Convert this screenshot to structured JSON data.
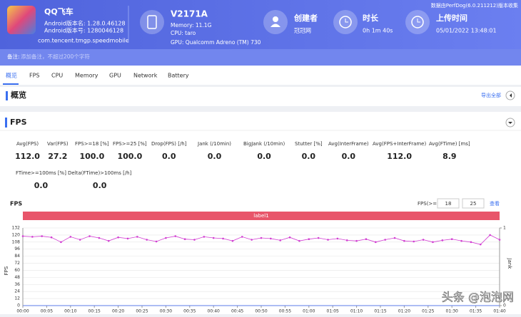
{
  "header": {
    "app": {
      "name": "QQ飞车",
      "version_name": "Android版本名: 1.28.0.46128",
      "version_code": "Android版本号: 1280046128",
      "package": "com.tencent.tmgp.speedmobile"
    },
    "device": {
      "model": "V2171A",
      "memory": "Memory: 11.1G",
      "cpu": "CPU: taro",
      "gpu": "GPU: Qualcomm Adreno (TM) 730"
    },
    "creator": {
      "title": "创建者",
      "value": "冠冠网"
    },
    "duration": {
      "title": "时长",
      "value": "0h 1m 40s"
    },
    "upload": {
      "title": "上传时间",
      "value": "05/01/2022 13:48:01"
    },
    "source": "数据由PerfDog(6.0.211212)版本收集"
  },
  "note": {
    "label": "备注:",
    "placeholder": "添加备注，不超过200个字符"
  },
  "tabs": [
    "概览",
    "FPS",
    "CPU",
    "Memory",
    "GPU",
    "Network",
    "Battery"
  ],
  "overview": {
    "title": "概览",
    "export": "导出全部"
  },
  "fps_section": {
    "title": "FPS",
    "metrics": [
      {
        "label": "Avg(FPS)",
        "value": "112.0"
      },
      {
        "label": "Var(FPS)",
        "value": "27.2"
      },
      {
        "label": "FPS>=18 [%]",
        "value": "100.0"
      },
      {
        "label": "FPS>=25 [%]",
        "value": "100.0"
      },
      {
        "label": "Drop(FPS) [/h]",
        "value": "0.0"
      },
      {
        "label": "Jank (/10min)",
        "value": "0.0"
      },
      {
        "label": "BigJank (/10min)",
        "value": "0.0"
      },
      {
        "label": "Stutter [%]",
        "value": "0.0"
      },
      {
        "label": "Avg(InterFrame)",
        "value": "0.0"
      },
      {
        "label": "Avg(FPS+InterFrame)",
        "value": "112.0"
      },
      {
        "label": "Avg(FTime) [ms]",
        "value": "8.9"
      },
      {
        "label": "FTime>=100ms [%]",
        "value": "0.0"
      },
      {
        "label": "Delta(FTime)>100ms [/h]",
        "value": "0.0"
      }
    ]
  },
  "chart_data": {
    "type": "line",
    "title": "FPS",
    "threshold_label": "FPS(>=)",
    "thresholds": [
      18,
      25
    ],
    "view": "查看",
    "label": "label1",
    "y_label": "FPS",
    "y2_label": "Jank",
    "color": "#d23fd2",
    "x": [
      0,
      2,
      4,
      6,
      8,
      10,
      12,
      14,
      16,
      18,
      20,
      22,
      24,
      26,
      28,
      30,
      32,
      34,
      36,
      38,
      40,
      42,
      44,
      46,
      48,
      50,
      52,
      54,
      56,
      58,
      60,
      62,
      64,
      66,
      68,
      70,
      72,
      74,
      76,
      78,
      80,
      82,
      84,
      86,
      88,
      90,
      92,
      94,
      96,
      98,
      100
    ],
    "values": [
      118,
      117,
      118,
      116,
      108,
      117,
      112,
      118,
      115,
      110,
      116,
      114,
      117,
      112,
      109,
      115,
      118,
      113,
      112,
      117,
      115,
      114,
      110,
      117,
      112,
      115,
      114,
      111,
      116,
      110,
      113,
      115,
      112,
      114,
      111,
      110,
      113,
      108,
      112,
      115,
      110,
      109,
      112,
      108,
      111,
      113,
      110,
      108,
      104,
      120,
      112
    ],
    "xlim": [
      0,
      100
    ],
    "ylim": [
      0,
      132
    ],
    "yticks": [
      0,
      12,
      24,
      36,
      48,
      60,
      72,
      84,
      96,
      108,
      120,
      132
    ],
    "y2lim": [
      0,
      1
    ],
    "y2ticks": [
      0,
      1
    ],
    "xticks": [
      {
        "value": 0,
        "label": "00:00"
      },
      {
        "value": 5,
        "label": "00:05"
      },
      {
        "value": 10,
        "label": "00:10"
      },
      {
        "value": 15,
        "label": "00:15"
      },
      {
        "value": 20,
        "label": "00:20"
      },
      {
        "value": 25,
        "label": "00:25"
      },
      {
        "value": 30,
        "label": "00:30"
      },
      {
        "value": 35,
        "label": "00:35"
      },
      {
        "value": 40,
        "label": "00:40"
      },
      {
        "value": 45,
        "label": "00:45"
      },
      {
        "value": 50,
        "label": "00:50"
      },
      {
        "value": 55,
        "label": "00:55"
      },
      {
        "value": 60,
        "label": "01:00"
      },
      {
        "value": 65,
        "label": "01:05"
      },
      {
        "value": 70,
        "label": "01:10"
      },
      {
        "value": 75,
        "label": "01:15"
      },
      {
        "value": 80,
        "label": "01:20"
      },
      {
        "value": 85,
        "label": "01:25"
      },
      {
        "value": 90,
        "label": "01:30"
      },
      {
        "value": 95,
        "label": "01:35"
      },
      {
        "value": 100,
        "label": "01:40"
      }
    ]
  },
  "watermark": "头条 @泡泡网"
}
